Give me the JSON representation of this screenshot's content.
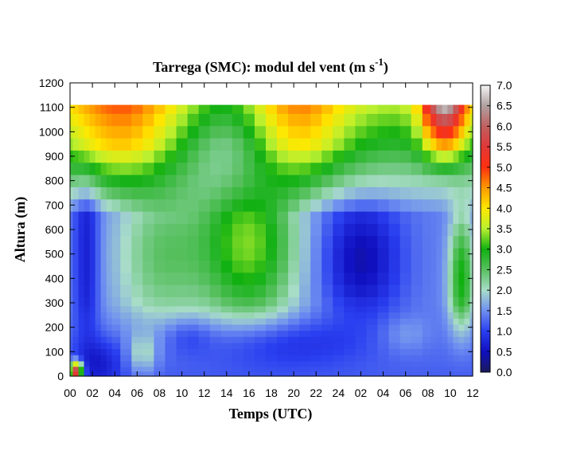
{
  "chart_data": {
    "type": "heatmap",
    "title": "Tarrega (SMC): modul del vent (m s",
    "title_superscript": "-1",
    "title_close": ")",
    "xlabel": "Temps (UTC)",
    "ylabel": "Altura (m)",
    "xlim": [
      0,
      36
    ],
    "ylim": [
      0,
      1200
    ],
    "x_tick_labels": [
      "00",
      "02",
      "04",
      "06",
      "08",
      "10",
      "12",
      "14",
      "16",
      "18",
      "20",
      "22",
      "24",
      "02",
      "04",
      "06",
      "08",
      "10",
      "12"
    ],
    "y_ticks": [
      0,
      100,
      200,
      300,
      400,
      500,
      600,
      700,
      800,
      900,
      1000,
      1100,
      1200
    ],
    "colorbar": {
      "min": 0.0,
      "max": 7.0,
      "tick_labels": [
        "0.0",
        "0.5",
        "1.0",
        "1.5",
        "2.0",
        "2.5",
        "3.0",
        "3.5",
        "4.0",
        "4.5",
        "5.0",
        "5.5",
        "6.0",
        "6.5",
        "7.0"
      ],
      "stops": [
        {
          "v": 0.0,
          "color": "#1a1a5e"
        },
        {
          "v": 0.5,
          "color": "#1010c0"
        },
        {
          "v": 1.0,
          "color": "#2a3ff0"
        },
        {
          "v": 1.5,
          "color": "#6f8ff0"
        },
        {
          "v": 2.0,
          "color": "#a8dcc8"
        },
        {
          "v": 2.5,
          "color": "#58c060"
        },
        {
          "v": 3.0,
          "color": "#10b010"
        },
        {
          "v": 3.5,
          "color": "#b8f030"
        },
        {
          "v": 4.0,
          "color": "#ffe800"
        },
        {
          "v": 4.5,
          "color": "#ff9a00"
        },
        {
          "v": 5.0,
          "color": "#ff3010"
        },
        {
          "v": 5.5,
          "color": "#e03838"
        },
        {
          "v": 6.0,
          "color": "#c06060"
        },
        {
          "v": 6.5,
          "color": "#b0a0a0"
        },
        {
          "v": 7.0,
          "color": "#f4f4f4"
        }
      ]
    },
    "grid_heights": [
      10,
      30,
      50,
      75,
      100,
      125,
      150,
      175,
      200,
      225,
      250,
      275,
      300,
      350,
      400,
      450,
      500,
      550,
      600,
      650,
      700,
      750,
      800,
      850,
      900,
      950,
      1000,
      1050,
      1100
    ],
    "grid_times": [
      0,
      0.5,
      1,
      1.5,
      2,
      2.5,
      3,
      3.5,
      4,
      5,
      6,
      7,
      8,
      9,
      10,
      11,
      12,
      13,
      14,
      15,
      16,
      17,
      18,
      19,
      20,
      21,
      22,
      23,
      24,
      25,
      26,
      27,
      28,
      29,
      30,
      31,
      32,
      32.5,
      33,
      33.5,
      34,
      34.5,
      35,
      35.5,
      36
    ],
    "data_top_height": 1110
  }
}
